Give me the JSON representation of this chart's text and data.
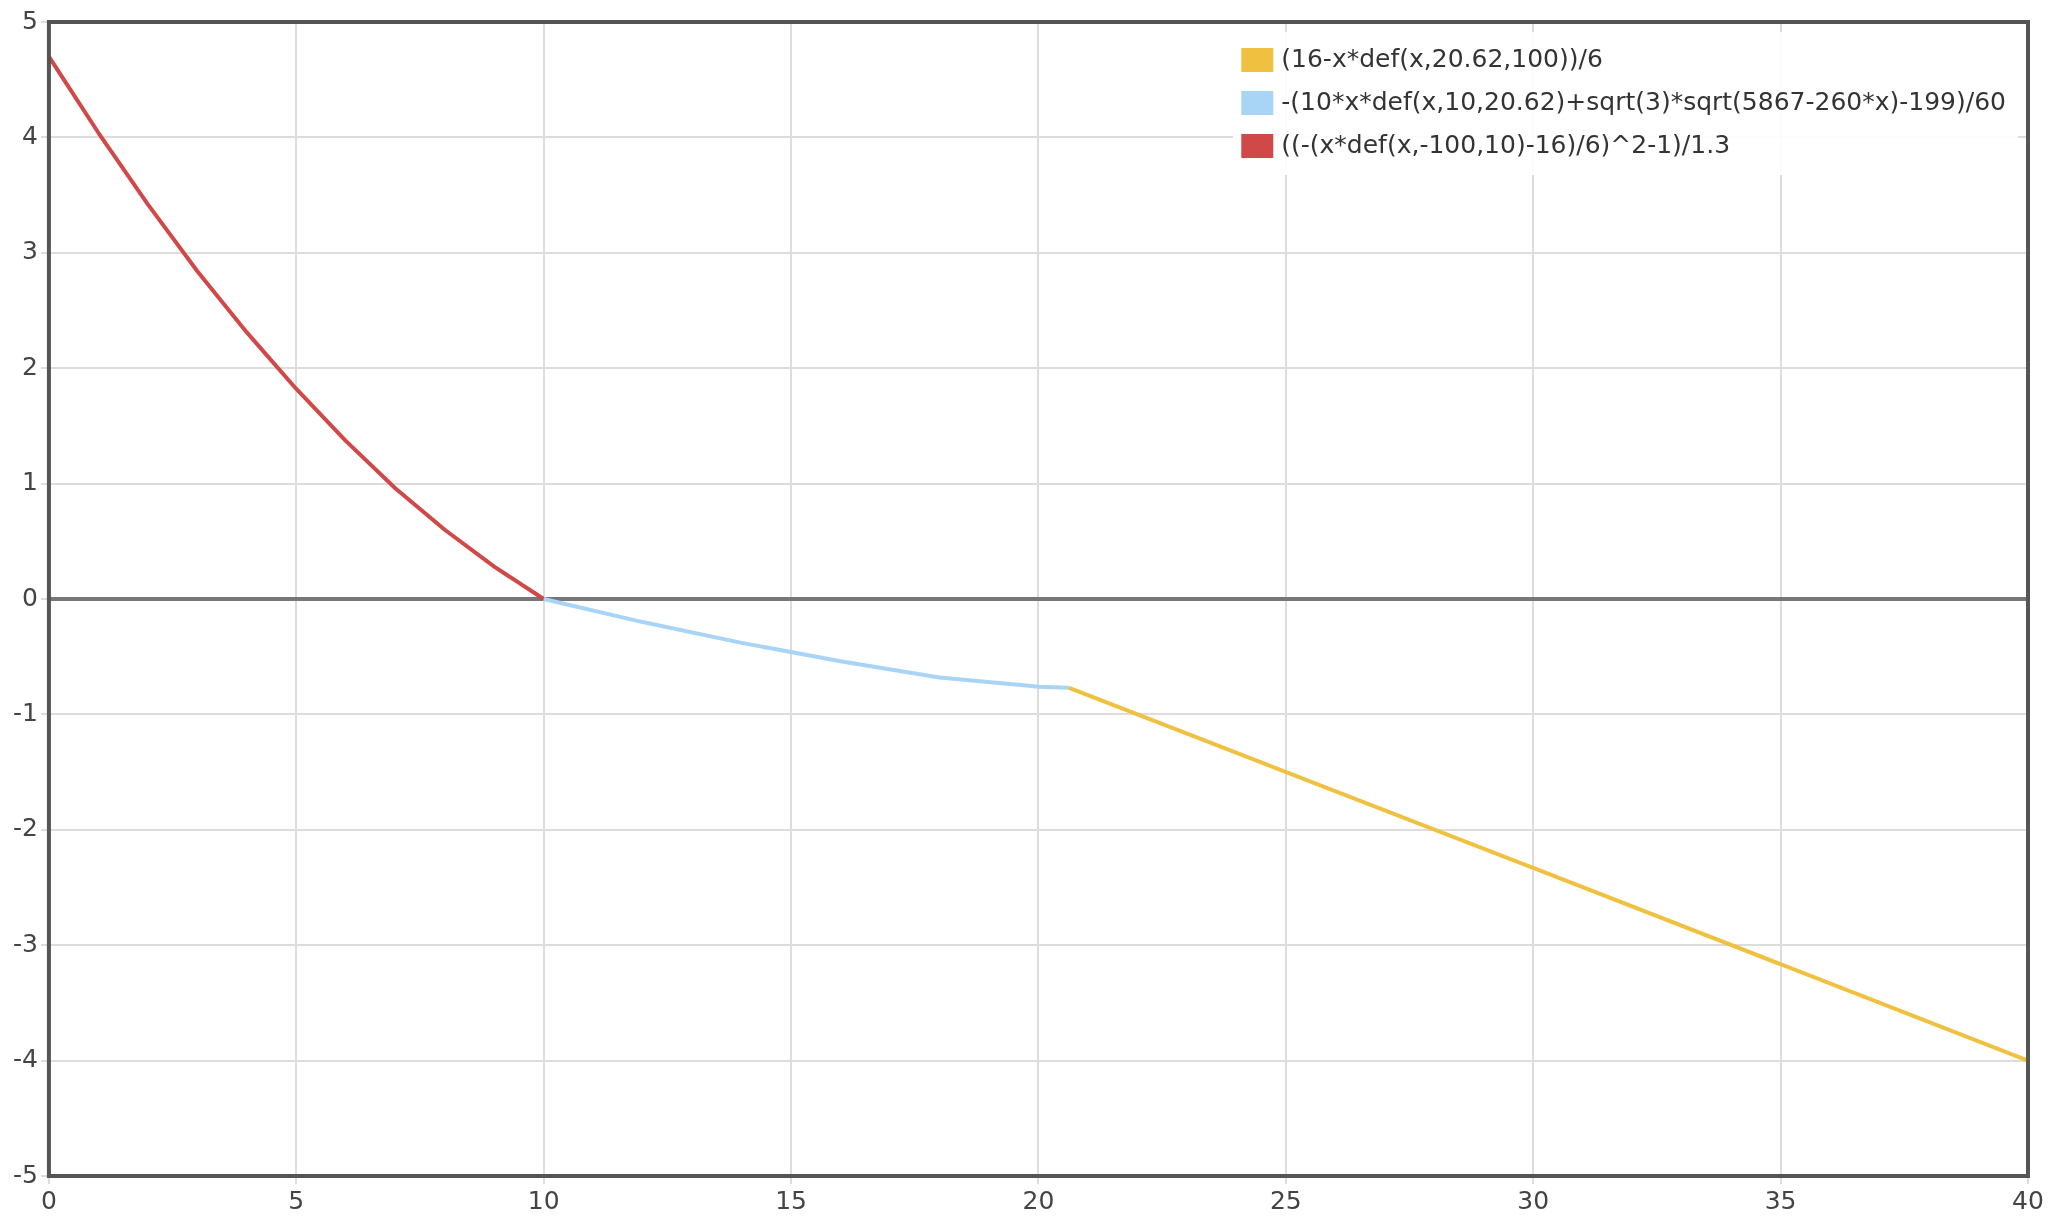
{
  "chart_data": {
    "type": "line",
    "xlim": [
      0,
      40
    ],
    "xticks": [
      0,
      5,
      10,
      15,
      20,
      25,
      30,
      35,
      40
    ],
    "ylim": [
      -5,
      5
    ],
    "yticks": [
      -5,
      -4,
      -3,
      -2,
      -1,
      0,
      1,
      2,
      3,
      4,
      5
    ],
    "grid": true,
    "legend": "top right",
    "marker": "none",
    "line_style": "solid",
    "ref_lines": [
      {
        "axis": "y",
        "value": 0,
        "color": "#777777"
      }
    ],
    "series": [
      {
        "name": "(16-x*def(x,20.62,100))/6",
        "color": "#f0c040",
        "x": [
          20.62,
          30,
          40
        ],
        "values": [
          -0.77,
          -2.33,
          -4
        ]
      },
      {
        "name": "-(10*x*def(x,10,20.62)+sqrt(3)*sqrt(5867-260*x)-199)/60",
        "color": "#a8d4f5",
        "x": [
          10,
          12,
          14,
          16,
          18,
          20,
          20.62
        ],
        "values": [
          0,
          -0.2,
          -0.38,
          -0.54,
          -0.68,
          -0.76,
          -0.77
        ]
      },
      {
        "name": "((-(x*def(x,-100,10)-16)/6)^2-1)/1.3",
        "color": "#d04848",
        "x": [
          0,
          1,
          2,
          3,
          4,
          5,
          6,
          7,
          8,
          9,
          10
        ],
        "values": [
          4.7,
          4.04,
          3.42,
          2.84,
          2.31,
          1.82,
          1.37,
          0.96,
          0.6,
          0.28,
          0
        ]
      }
    ]
  }
}
